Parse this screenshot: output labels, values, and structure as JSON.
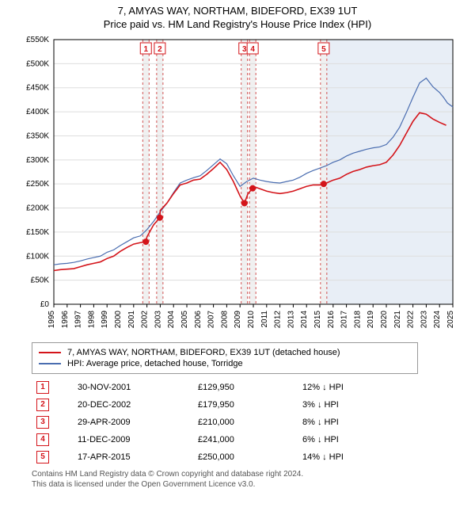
{
  "title": {
    "line1": "7, AMYAS WAY, NORTHAM, BIDEFORD, EX39 1UT",
    "line2": "Price paid vs. HM Land Registry's House Price Index (HPI)"
  },
  "chart": {
    "type": "line",
    "background_color": "#ffffff",
    "shade_future_color": "#e8eef6",
    "grid_color": "#dddddd",
    "axis_color": "#000000",
    "label_fontsize": 10,
    "x": {
      "min": 1995,
      "max": 2025,
      "step": 1
    },
    "y": {
      "min": 0,
      "max": 550000,
      "step": 50000,
      "prefix": "£",
      "suffix": "K",
      "div": 1000
    },
    "sale_band_color": "#f0f0f0",
    "sale_band_dash": "#c92a2a",
    "series": [
      {
        "id": "property",
        "label": "7, AMYAS WAY, NORTHAM, BIDEFORD, EX39 1UT (detached house)",
        "color": "#d4141a",
        "width": 1.6,
        "points": [
          [
            1995,
            70000
          ],
          [
            1995.5,
            72000
          ],
          [
            1996,
            73000
          ],
          [
            1996.5,
            74000
          ],
          [
            1997,
            78000
          ],
          [
            1997.5,
            82000
          ],
          [
            1998,
            85000
          ],
          [
            1998.5,
            88000
          ],
          [
            1999,
            95000
          ],
          [
            1999.5,
            100000
          ],
          [
            2000,
            110000
          ],
          [
            2000.5,
            118000
          ],
          [
            2001,
            125000
          ],
          [
            2001.5,
            128000
          ],
          [
            2001.92,
            129950
          ],
          [
            2002,
            140000
          ],
          [
            2002.5,
            165000
          ],
          [
            2002.97,
            179950
          ],
          [
            2003,
            195000
          ],
          [
            2003.5,
            210000
          ],
          [
            2004,
            230000
          ],
          [
            2004.5,
            248000
          ],
          [
            2005,
            252000
          ],
          [
            2005.5,
            258000
          ],
          [
            2006,
            260000
          ],
          [
            2006.5,
            270000
          ],
          [
            2007,
            282000
          ],
          [
            2007.5,
            295000
          ],
          [
            2008,
            280000
          ],
          [
            2008.5,
            255000
          ],
          [
            2009,
            225000
          ],
          [
            2009.33,
            210000
          ],
          [
            2009.6,
            230000
          ],
          [
            2009.95,
            241000
          ],
          [
            2010,
            245000
          ],
          [
            2010.5,
            240000
          ],
          [
            2011,
            235000
          ],
          [
            2011.5,
            232000
          ],
          [
            2012,
            230000
          ],
          [
            2012.5,
            232000
          ],
          [
            2013,
            235000
          ],
          [
            2013.5,
            240000
          ],
          [
            2014,
            245000
          ],
          [
            2014.5,
            248000
          ],
          [
            2015,
            248000
          ],
          [
            2015.29,
            250000
          ],
          [
            2015.5,
            252000
          ],
          [
            2016,
            258000
          ],
          [
            2016.5,
            262000
          ],
          [
            2017,
            270000
          ],
          [
            2017.5,
            276000
          ],
          [
            2018,
            280000
          ],
          [
            2018.5,
            285000
          ],
          [
            2019,
            288000
          ],
          [
            2019.5,
            290000
          ],
          [
            2020,
            295000
          ],
          [
            2020.5,
            310000
          ],
          [
            2021,
            330000
          ],
          [
            2021.5,
            355000
          ],
          [
            2022,
            380000
          ],
          [
            2022.5,
            398000
          ],
          [
            2023,
            395000
          ],
          [
            2023.5,
            385000
          ],
          [
            2024,
            378000
          ],
          [
            2024.5,
            372000
          ]
        ]
      },
      {
        "id": "hpi",
        "label": "HPI: Average price, detached house, Torridge",
        "color": "#4a6db0",
        "width": 1.2,
        "points": [
          [
            1995,
            82000
          ],
          [
            1995.5,
            84000
          ],
          [
            1996,
            85000
          ],
          [
            1996.5,
            87000
          ],
          [
            1997,
            90000
          ],
          [
            1997.5,
            94000
          ],
          [
            1998,
            97000
          ],
          [
            1998.5,
            100000
          ],
          [
            1999,
            108000
          ],
          [
            1999.5,
            113000
          ],
          [
            2000,
            122000
          ],
          [
            2000.5,
            130000
          ],
          [
            2001,
            138000
          ],
          [
            2001.5,
            142000
          ],
          [
            2002,
            155000
          ],
          [
            2002.5,
            172000
          ],
          [
            2003,
            192000
          ],
          [
            2003.5,
            210000
          ],
          [
            2004,
            232000
          ],
          [
            2004.5,
            252000
          ],
          [
            2005,
            258000
          ],
          [
            2005.5,
            263000
          ],
          [
            2006,
            267000
          ],
          [
            2006.5,
            278000
          ],
          [
            2007,
            290000
          ],
          [
            2007.5,
            302000
          ],
          [
            2008,
            292000
          ],
          [
            2008.5,
            267000
          ],
          [
            2009,
            245000
          ],
          [
            2009.5,
            255000
          ],
          [
            2010,
            262000
          ],
          [
            2010.5,
            258000
          ],
          [
            2011,
            255000
          ],
          [
            2011.5,
            253000
          ],
          [
            2012,
            252000
          ],
          [
            2012.5,
            255000
          ],
          [
            2013,
            258000
          ],
          [
            2013.5,
            264000
          ],
          [
            2014,
            272000
          ],
          [
            2014.5,
            278000
          ],
          [
            2015,
            283000
          ],
          [
            2015.5,
            288000
          ],
          [
            2016,
            295000
          ],
          [
            2016.5,
            300000
          ],
          [
            2017,
            308000
          ],
          [
            2017.5,
            314000
          ],
          [
            2018,
            318000
          ],
          [
            2018.5,
            322000
          ],
          [
            2019,
            325000
          ],
          [
            2019.5,
            327000
          ],
          [
            2020,
            332000
          ],
          [
            2020.5,
            347000
          ],
          [
            2021,
            368000
          ],
          [
            2021.5,
            398000
          ],
          [
            2022,
            430000
          ],
          [
            2022.5,
            460000
          ],
          [
            2023,
            470000
          ],
          [
            2023.5,
            452000
          ],
          [
            2024,
            440000
          ],
          [
            2024.3,
            430000
          ],
          [
            2024.6,
            418000
          ],
          [
            2025,
            410000
          ]
        ]
      }
    ],
    "sales": [
      {
        "n": 1,
        "x": 2001.92,
        "price": 129950,
        "date": "30-NOV-2001",
        "diff": "12% ↓ HPI"
      },
      {
        "n": 2,
        "x": 2002.97,
        "price": 179950,
        "date": "20-DEC-2002",
        "diff": "3% ↓ HPI"
      },
      {
        "n": 3,
        "x": 2009.33,
        "price": 210000,
        "date": "29-APR-2009",
        "diff": "8% ↓ HPI"
      },
      {
        "n": 4,
        "x": 2009.95,
        "price": 241000,
        "date": "11-DEC-2009",
        "diff": "6% ↓ HPI"
      },
      {
        "n": 5,
        "x": 2015.29,
        "price": 250000,
        "date": "17-APR-2015",
        "diff": "14% ↓ HPI"
      }
    ],
    "shade_future_from": 2015.29
  },
  "attribution": {
    "line1": "Contains HM Land Registry data © Crown copyright and database right 2024.",
    "line2": "This data is licensed under the Open Government Licence v3.0."
  }
}
